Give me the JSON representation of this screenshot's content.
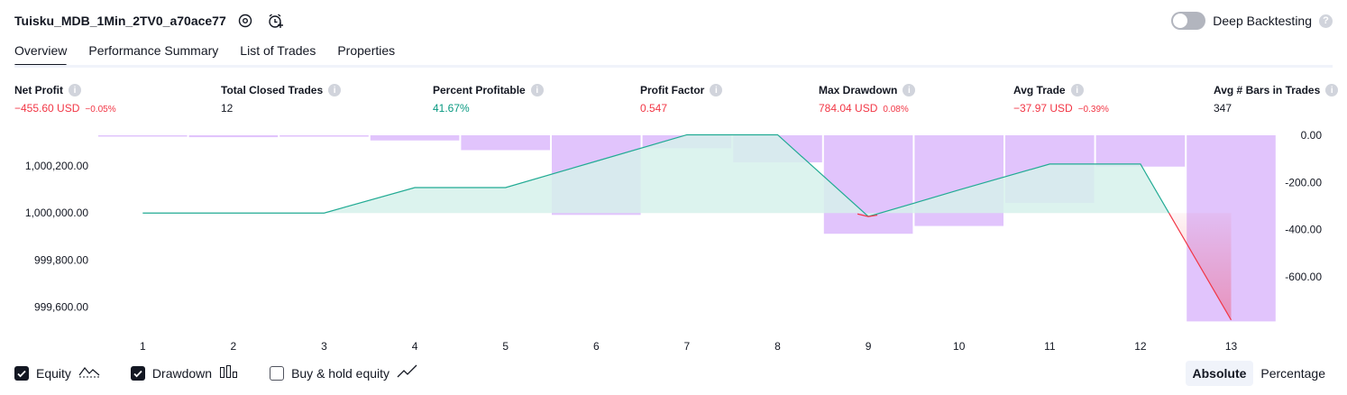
{
  "header": {
    "title": "Tuisku_MDB_1Min_2TV0_a70ace77",
    "deep_backtesting_label": "Deep Backtesting",
    "help_glyph": "?"
  },
  "tabs": [
    {
      "label": "Overview",
      "active": true
    },
    {
      "label": "Performance Summary",
      "active": false
    },
    {
      "label": "List of Trades",
      "active": false
    },
    {
      "label": "Properties",
      "active": false
    }
  ],
  "stats": [
    {
      "label": "Net Profit",
      "value": "−455.60 USD",
      "pct": "−0.05%",
      "tone": "neg"
    },
    {
      "label": "Total Closed Trades",
      "value": "12",
      "pct": "",
      "tone": "neutral"
    },
    {
      "label": "Percent Profitable",
      "value": "41.67%",
      "pct": "",
      "tone": "pos"
    },
    {
      "label": "Profit Factor",
      "value": "0.547",
      "pct": "",
      "tone": "neg"
    },
    {
      "label": "Max Drawdown",
      "value": "784.04 USD",
      "pct": "0.08%",
      "tone": "neg"
    },
    {
      "label": "Avg Trade",
      "value": "−37.97 USD",
      "pct": "−0.39%",
      "tone": "neg"
    },
    {
      "label": "Avg # Bars in Trades",
      "value": "347",
      "pct": "",
      "tone": "neutral"
    }
  ],
  "chart_data": {
    "type": "line",
    "x": [
      1,
      2,
      3,
      4,
      5,
      6,
      7,
      8,
      9,
      10,
      11,
      12,
      13
    ],
    "equity_axis": {
      "ticks": [
        "1,000,200.00",
        "1,000,000.00",
        "999,800.00",
        "999,600.00"
      ],
      "ylim": [
        999530,
        1000330
      ]
    },
    "drawdown_axis": {
      "ticks": [
        "0.00",
        "-200.00",
        "-400.00",
        "-600.00"
      ],
      "ylim": [
        -800,
        0
      ]
    },
    "series": [
      {
        "values": [
          1000000,
          1000000,
          1000000,
          1000108,
          1000108,
          1000220,
          1000332,
          1000332,
          999985,
          1000098,
          1000208,
          1000208,
          999546
        ]
      },
      {
        "values": [
          -5,
          -8,
          -6,
          -22,
          -63,
          -338,
          -55,
          -115,
          -418,
          -385,
          -287,
          -133,
          -790
        ]
      }
    ],
    "colors": {
      "equity_line": "#22ab94",
      "equity_loss_line": "#f23645",
      "equity_fill": "#d6f1eb",
      "drawdown_bar": "#e1c4fc"
    }
  },
  "legend": [
    {
      "label": "Equity",
      "checked": true,
      "icon": "equity-line-icon"
    },
    {
      "label": "Drawdown",
      "checked": true,
      "icon": "drawdown-bars-icon"
    },
    {
      "label": "Buy & hold equity",
      "checked": false,
      "icon": "buy-hold-line-icon"
    }
  ],
  "view_mode": {
    "absolute": "Absolute",
    "percentage": "Percentage",
    "selected": "Absolute"
  }
}
